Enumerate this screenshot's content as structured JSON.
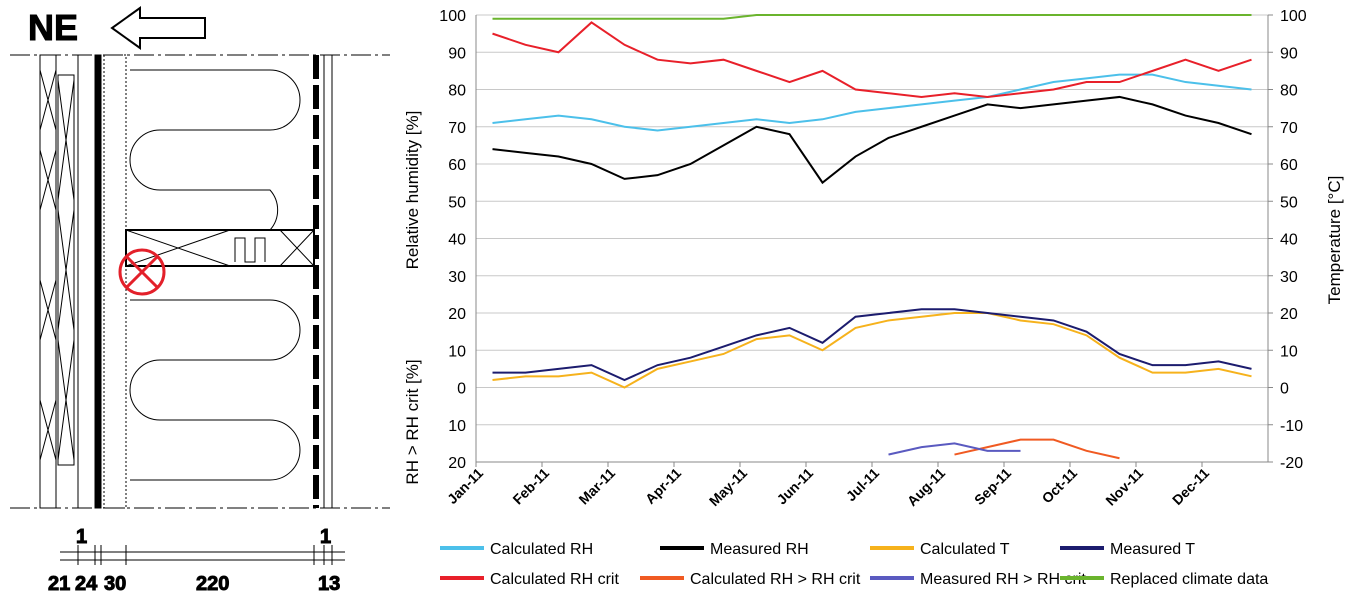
{
  "diagram": {
    "orientation": "NE",
    "top_dimensions": [
      "1",
      "1"
    ],
    "bottom_dimensions": [
      "21",
      "24",
      "30",
      "220",
      "13"
    ]
  },
  "chart_data": {
    "type": "line",
    "y_label": "Relative humidity [%]",
    "y_label_lower": "RH > RH crit [%]",
    "y2_label": "Temperature [°C]",
    "categories": [
      "Jan-11",
      null,
      "Feb-11",
      null,
      "Mar-11",
      null,
      "Apr-11",
      null,
      "May-11",
      null,
      "Jun-11",
      null,
      "Jul-11",
      null,
      "Aug-11",
      null,
      "Sep-11",
      null,
      "Oct-11",
      null,
      "Nov-11",
      null,
      "Dec-11",
      null
    ],
    "ylim": [
      -20,
      100
    ],
    "yticks": [
      {
        "value": -20,
        "label": "20"
      },
      {
        "value": -10,
        "label": "10"
      },
      0,
      10,
      20,
      30,
      40,
      50,
      60,
      70,
      80,
      90,
      100
    ],
    "y2lim": [
      -20,
      100
    ],
    "y2ticks": [
      -20,
      -10,
      0,
      10,
      20,
      30,
      40,
      50,
      60,
      70,
      80,
      90,
      100
    ],
    "grid": true,
    "series": [
      {
        "name": "Calculated RH",
        "color": "#4cc0ea",
        "values": [
          71,
          72,
          73,
          72,
          70,
          69,
          70,
          71,
          72,
          71,
          72,
          74,
          75,
          76,
          77,
          78,
          80,
          82,
          83,
          84,
          84,
          82,
          81,
          80
        ]
      },
      {
        "name": "Measured RH",
        "color": "#000000",
        "values": [
          64,
          63,
          62,
          60,
          56,
          57,
          60,
          65,
          70,
          68,
          55,
          62,
          67,
          70,
          73,
          76,
          75,
          76,
          77,
          78,
          76,
          73,
          71,
          68
        ]
      },
      {
        "name": "Calculated T",
        "color": "#f6b21c",
        "axis": "y2",
        "values": [
          2,
          3,
          3,
          4,
          0,
          5,
          7,
          9,
          13,
          14,
          10,
          16,
          18,
          19,
          20,
          20,
          18,
          17,
          14,
          8,
          4,
          4,
          5,
          3
        ]
      },
      {
        "name": "Measured T",
        "color": "#1c1c6e",
        "axis": "y2",
        "values": [
          4,
          4,
          5,
          6,
          2,
          6,
          8,
          11,
          14,
          16,
          12,
          19,
          20,
          21,
          21,
          20,
          19,
          18,
          15,
          9,
          6,
          6,
          7,
          5
        ]
      },
      {
        "name": "Calculated RH crit",
        "color": "#e8202a",
        "values": [
          95,
          92,
          90,
          98,
          92,
          88,
          87,
          88,
          85,
          82,
          85,
          80,
          79,
          78,
          79,
          78,
          79,
          80,
          82,
          82,
          85,
          88,
          85,
          88
        ]
      },
      {
        "name": "Calculated RH > RH crit",
        "color": "#f05a22",
        "values": [
          null,
          null,
          null,
          null,
          null,
          null,
          null,
          null,
          null,
          null,
          null,
          null,
          null,
          null,
          -18,
          -16,
          -14,
          -14,
          -17,
          -19,
          null,
          null,
          null,
          null
        ]
      },
      {
        "name": "Measured RH > RH crit",
        "color": "#5a5ac0",
        "values": [
          null,
          null,
          null,
          null,
          null,
          null,
          null,
          null,
          null,
          null,
          null,
          null,
          -18,
          -16,
          -15,
          -17,
          -17,
          null,
          null,
          null,
          null,
          null,
          null,
          null
        ]
      },
      {
        "name": "Replaced climate data",
        "color": "#6ab42d",
        "values": [
          99,
          99,
          99,
          99,
          99,
          99,
          99,
          99,
          100,
          100,
          100,
          100,
          100,
          100,
          100,
          100,
          100,
          100,
          100,
          100,
          100,
          100,
          100,
          100
        ]
      }
    ]
  }
}
